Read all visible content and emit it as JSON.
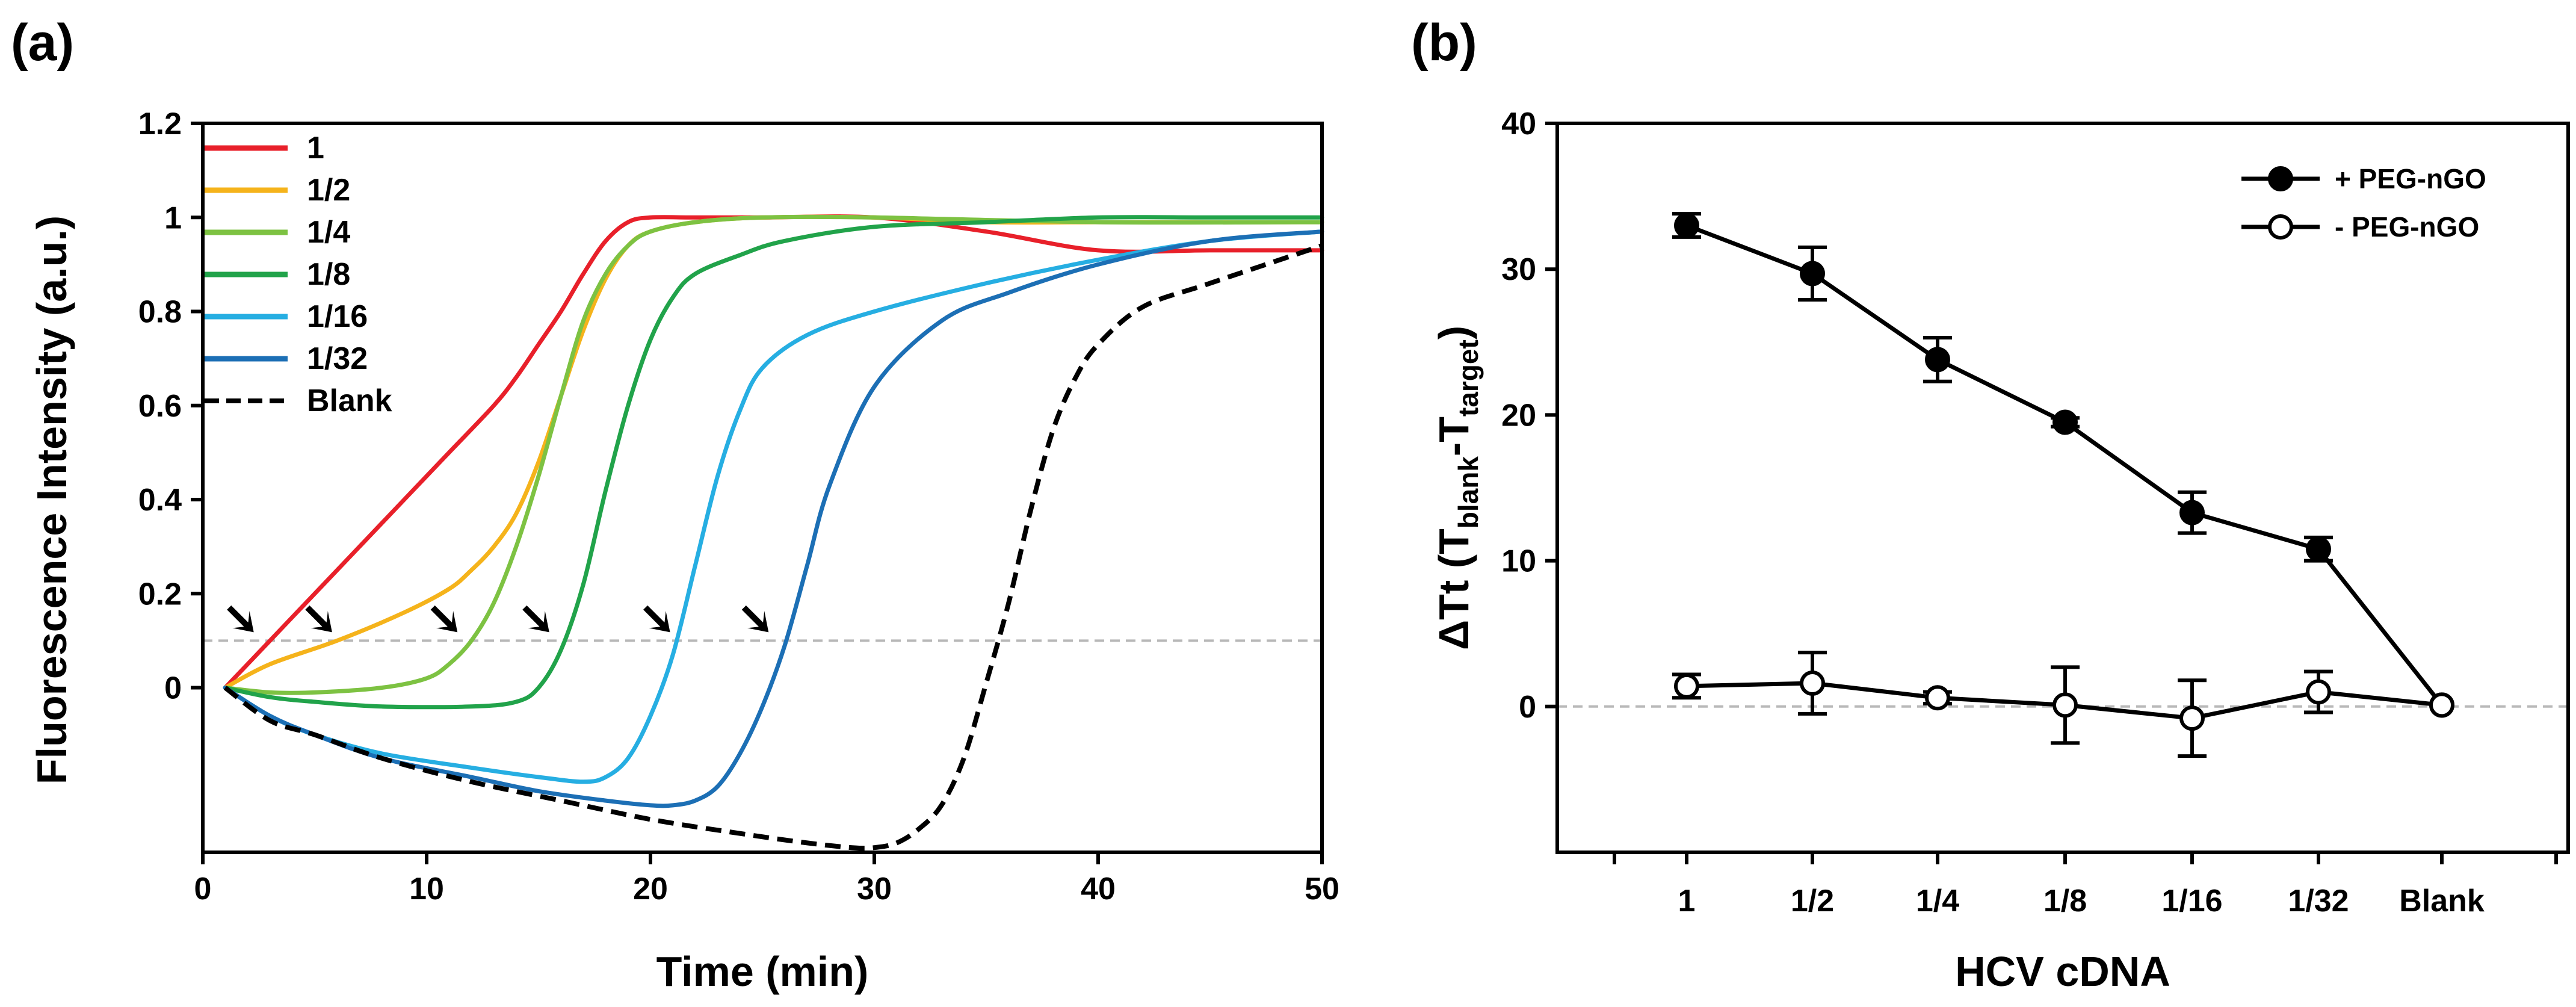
{
  "panels": {
    "a_label": "(a)",
    "b_label": "(b)"
  },
  "chart_data": [
    {
      "panel": "(a)",
      "type": "line",
      "title": "",
      "xlabel": "Time (min)",
      "ylabel": "Fluorescence Intensity (a.u.)",
      "xlim": [
        0,
        50
      ],
      "ylim": [
        -0.35,
        1.2
      ],
      "xticks": [
        0,
        10,
        20,
        30,
        40,
        50
      ],
      "yticks": [
        0,
        0.2,
        0.4,
        0.6,
        0.8,
        1,
        1.2
      ],
      "ytick_labels": [
        "0",
        "0.2",
        "0.4",
        "0.6",
        "0.8",
        "1",
        "1.2"
      ],
      "threshold": 0.1,
      "legend_position": "top-left",
      "series": [
        {
          "name": "1",
          "color": "#e8202a",
          "dash": false,
          "x": [
            1,
            3,
            5,
            7,
            9,
            11,
            13,
            14,
            15,
            16,
            17,
            18,
            19,
            20,
            22,
            25,
            30,
            35,
            40,
            45,
            50
          ],
          "y": [
            0,
            0.1,
            0.2,
            0.3,
            0.4,
            0.5,
            0.6,
            0.66,
            0.73,
            0.8,
            0.88,
            0.95,
            0.99,
            1.0,
            1.0,
            1.0,
            1.0,
            0.97,
            0.93,
            0.93,
            0.93
          ]
        },
        {
          "name": "1/2",
          "color": "#f5b31b",
          "dash": false,
          "x": [
            1,
            3,
            6,
            9,
            11,
            12,
            13,
            14,
            15,
            16,
            17,
            18,
            19,
            20,
            22,
            25,
            30,
            35,
            40,
            45,
            50
          ],
          "y": [
            0,
            0.05,
            0.1,
            0.16,
            0.21,
            0.25,
            0.3,
            0.37,
            0.48,
            0.62,
            0.76,
            0.87,
            0.94,
            0.97,
            0.99,
            1.0,
            1.0,
            0.99,
            0.99,
            0.99,
            0.99
          ]
        },
        {
          "name": "1/4",
          "color": "#7dc242",
          "dash": false,
          "x": [
            1,
            3,
            5,
            8,
            10,
            11,
            12,
            13,
            14,
            15,
            16,
            17,
            18,
            19,
            20,
            22,
            25,
            30,
            40,
            50
          ],
          "y": [
            0,
            -0.01,
            -0.01,
            0.0,
            0.02,
            0.05,
            0.1,
            0.18,
            0.3,
            0.45,
            0.62,
            0.78,
            0.88,
            0.94,
            0.97,
            0.99,
            1.0,
            1.0,
            0.99,
            0.99
          ]
        },
        {
          "name": "1/8",
          "color": "#21a34a",
          "dash": false,
          "x": [
            1,
            3,
            5,
            8,
            12,
            14,
            15,
            16,
            17,
            18,
            19,
            20,
            21,
            22,
            24,
            26,
            30,
            35,
            40,
            45,
            50
          ],
          "y": [
            0,
            -0.02,
            -0.03,
            -0.04,
            -0.04,
            -0.03,
            0.0,
            0.08,
            0.22,
            0.42,
            0.6,
            0.74,
            0.83,
            0.88,
            0.92,
            0.95,
            0.98,
            0.99,
            1.0,
            1.0,
            1.0
          ]
        },
        {
          "name": "1/16",
          "color": "#26aee2",
          "dash": false,
          "x": [
            1,
            3,
            5,
            8,
            12,
            15,
            17,
            18,
            19,
            20,
            21,
            22,
            23,
            24,
            25,
            27,
            30,
            35,
            40,
            45,
            50
          ],
          "y": [
            0,
            -0.06,
            -0.1,
            -0.14,
            -0.17,
            -0.19,
            -0.2,
            -0.19,
            -0.15,
            -0.06,
            0.07,
            0.26,
            0.45,
            0.59,
            0.68,
            0.75,
            0.8,
            0.86,
            0.91,
            0.95,
            0.97
          ]
        },
        {
          "name": "1/32",
          "color": "#1c6fb5",
          "dash": false,
          "x": [
            1,
            3,
            5,
            8,
            12,
            15,
            18,
            20,
            21,
            22,
            23,
            24,
            25,
            26,
            27,
            28,
            30,
            33,
            36,
            40,
            45,
            50
          ],
          "y": [
            0,
            -0.06,
            -0.1,
            -0.15,
            -0.19,
            -0.22,
            -0.24,
            -0.25,
            -0.25,
            -0.24,
            -0.21,
            -0.14,
            -0.04,
            0.09,
            0.26,
            0.43,
            0.64,
            0.78,
            0.84,
            0.9,
            0.95,
            0.97
          ]
        },
        {
          "name": "Blank",
          "color": "#000000",
          "dash": true,
          "x": [
            1,
            3,
            5,
            8,
            12,
            16,
            20,
            24,
            27,
            29,
            30,
            31,
            32,
            33,
            34,
            35,
            36,
            37,
            38,
            39,
            40,
            42,
            45,
            50
          ],
          "y": [
            0,
            -0.07,
            -0.1,
            -0.15,
            -0.2,
            -0.24,
            -0.28,
            -0.31,
            -0.33,
            -0.34,
            -0.34,
            -0.33,
            -0.3,
            -0.25,
            -0.15,
            0.01,
            0.18,
            0.38,
            0.55,
            0.66,
            0.73,
            0.81,
            0.86,
            0.94
          ]
        }
      ],
      "arrows": [
        {
          "x": 2.6,
          "y": 0.1
        },
        {
          "x": 6.1,
          "y": 0.1
        },
        {
          "x": 11.7,
          "y": 0.1
        },
        {
          "x": 15.8,
          "y": 0.1
        },
        {
          "x": 21.2,
          "y": 0.1
        },
        {
          "x": 25.6,
          "y": 0.1
        }
      ]
    },
    {
      "panel": "(b)",
      "type": "line",
      "title": "",
      "xlabel": "HCV cDNA",
      "ylabel_main": "ΔTt (T",
      "ylabel_sub1": "blank",
      "ylabel_mid": "-T",
      "ylabel_sub2": "target",
      "ylabel_end": ")",
      "categories": [
        "1",
        "1/2",
        "1/4",
        "1/8",
        "1/16",
        "1/32",
        "Blank"
      ],
      "ylim": [
        -10,
        40
      ],
      "yticks": [
        0,
        10,
        20,
        30,
        40
      ],
      "legend_position": "top-right",
      "series": [
        {
          "name": "+ PEG-nGO",
          "marker": "filled",
          "values": [
            33.0,
            29.7,
            23.8,
            19.5,
            13.3,
            10.8,
            0.1
          ],
          "errors": [
            0.8,
            1.8,
            1.5,
            0.3,
            1.4,
            0.8,
            0
          ]
        },
        {
          "name": "- PEG-nGO",
          "marker": "open",
          "values": [
            1.4,
            1.6,
            0.6,
            0.1,
            -0.8,
            1.0,
            0.1
          ],
          "errors": [
            0.8,
            2.1,
            0.4,
            2.6,
            2.6,
            1.4,
            0
          ]
        }
      ]
    }
  ]
}
